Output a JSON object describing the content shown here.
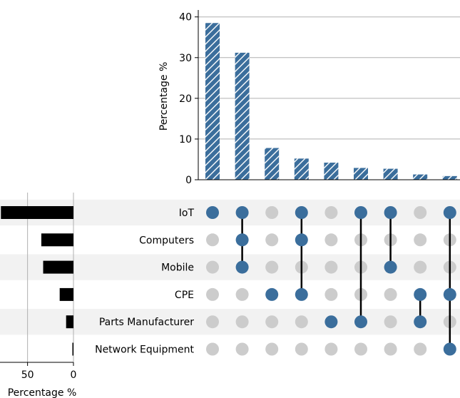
{
  "chart_data": {
    "type": "upset",
    "intersections": {
      "ylabel": "Percentage %",
      "ylim": [
        0,
        41
      ],
      "yticks": [
        0,
        10,
        20,
        30,
        40
      ],
      "bar_color": "#3b6e9c",
      "hatch": true,
      "values": [
        38.5,
        31.2,
        7.8,
        5.2,
        4.2,
        2.9,
        2.7,
        1.3,
        0.9
      ],
      "memberships": [
        [
          "IoT"
        ],
        [
          "IoT",
          "Computers",
          "Mobile"
        ],
        [
          "CPE"
        ],
        [
          "IoT",
          "Computers",
          "CPE"
        ],
        [
          "Parts Manufacturer"
        ],
        [
          "IoT",
          "Parts Manufacturer"
        ],
        [
          "IoT",
          "Mobile"
        ],
        [
          "CPE",
          "Parts Manufacturer"
        ],
        [
          "IoT",
          "CPE",
          "Network Equipment"
        ]
      ]
    },
    "sets": {
      "names": [
        "IoT",
        "Computers",
        "Mobile",
        "CPE",
        "Parts Manufacturer",
        "Network Equipment"
      ],
      "sizes": [
        79,
        35,
        33,
        15,
        8,
        1
      ],
      "xlabel": "Percentage %",
      "xticks": [
        50,
        0
      ],
      "xlim": [
        0,
        80
      ],
      "bar_color": "#000000"
    },
    "matrix_colors": {
      "active": "#3b6e9c",
      "inactive": "#cccccc",
      "line": "#000000",
      "stripe": "#f2f2f2"
    }
  }
}
